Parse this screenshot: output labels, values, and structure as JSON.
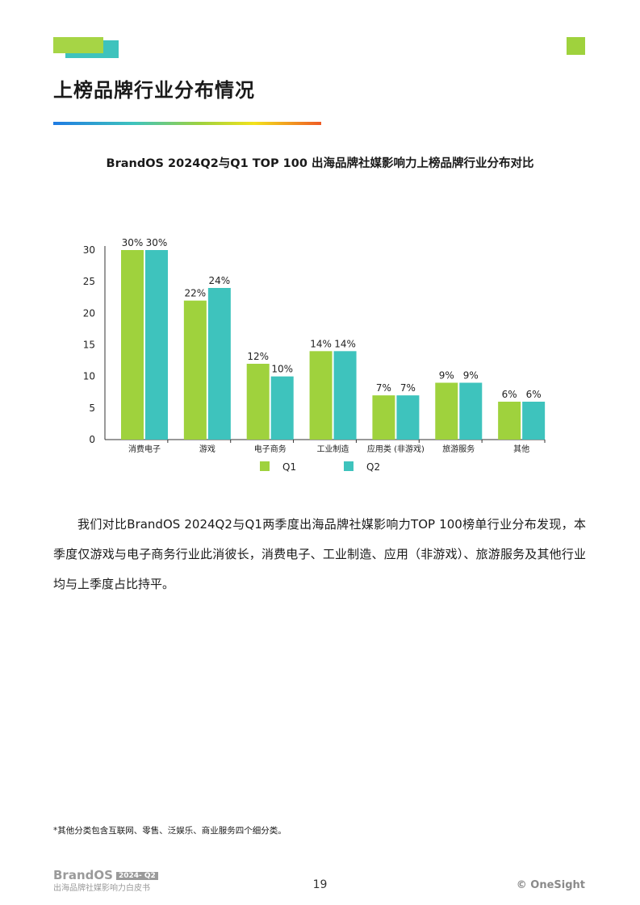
{
  "header": {
    "title": "上榜品牌行业分布情况"
  },
  "chart_data": {
    "type": "bar",
    "title": "BrandOS 2024Q2与Q1 TOP 100 出海品牌社媒影响力上榜品牌行业分布对比",
    "categories": [
      "消费电子",
      "游戏",
      "电子商务",
      "工业制造",
      "应用类 (非游戏)",
      "旅游服务",
      "其他"
    ],
    "series": [
      {
        "name": "Q1",
        "values": [
          30,
          22,
          12,
          14,
          7,
          9,
          6
        ],
        "labels": [
          "30%",
          "22%",
          "12%",
          "14%",
          "7%",
          "9%",
          "6%"
        ]
      },
      {
        "name": "Q2",
        "values": [
          30,
          24,
          10,
          14,
          7,
          9,
          6
        ],
        "labels": [
          "30%",
          "24%",
          "10%",
          "14%",
          "7%",
          "9%",
          "6%"
        ]
      }
    ],
    "yticks": [
      "0",
      "5",
      "10",
      "15",
      "20",
      "25",
      "30"
    ],
    "ylim": [
      0,
      30
    ],
    "legend_position": "bottom",
    "colors": {
      "Q1": "#9fd23d",
      "Q2": "#3ec3bd"
    }
  },
  "body": {
    "paragraph": "我们对比BrandOS 2024Q2与Q1两季度出海品牌社媒影响力TOP 100榜单行业分布发现，本季度仅游戏与电子商务行业此消彼长，消费电子、工业制造、应用（非游戏）、旅游服务及其他行业均与上季度占比持平。"
  },
  "footnote": "*其他分类包含互联网、零售、泛娱乐、商业服务四个细分类。",
  "footer": {
    "brand": "BrandOS",
    "tag": "2024- Q2",
    "subtitle": "出海品牌社媒影响力白皮书",
    "page_number": "19",
    "copyright": "© OneSight"
  }
}
